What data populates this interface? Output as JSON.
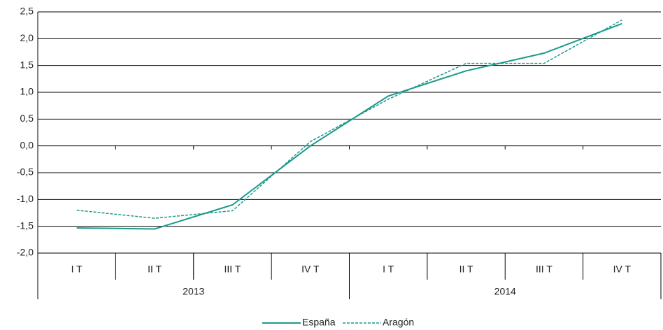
{
  "chart_data": {
    "type": "line",
    "categories": [
      "I T",
      "II T",
      "III T",
      "IV T",
      "I T",
      "II T",
      "III T",
      "IV T"
    ],
    "groups": [
      "2013",
      "2014"
    ],
    "series": [
      {
        "name": "España",
        "color": "#1a9a8a",
        "dash": false,
        "values": [
          -1.53,
          -1.55,
          -1.1,
          0.0,
          0.93,
          1.4,
          1.73,
          2.28
        ]
      },
      {
        "name": "Aragón",
        "color": "#1a9a8a",
        "dash": true,
        "values": [
          -1.2,
          -1.35,
          -1.21,
          0.08,
          0.87,
          1.54,
          1.54,
          2.35
        ]
      }
    ],
    "ylim": [
      -2.0,
      2.5
    ],
    "yticks": [
      {
        "value": -2.0,
        "label": "-2,0"
      },
      {
        "value": -1.5,
        "label": "-1,5"
      },
      {
        "value": -1.0,
        "label": "-1,0"
      },
      {
        "value": -0.5,
        "label": "-0,5"
      },
      {
        "value": 0.0,
        "label": "0,0"
      },
      {
        "value": 0.5,
        "label": "0,5"
      },
      {
        "value": 1.0,
        "label": "1,0"
      },
      {
        "value": 1.5,
        "label": "1,5"
      },
      {
        "value": 2.0,
        "label": "2,0"
      },
      {
        "value": 2.5,
        "label": "2,5"
      }
    ],
    "grid": true
  }
}
